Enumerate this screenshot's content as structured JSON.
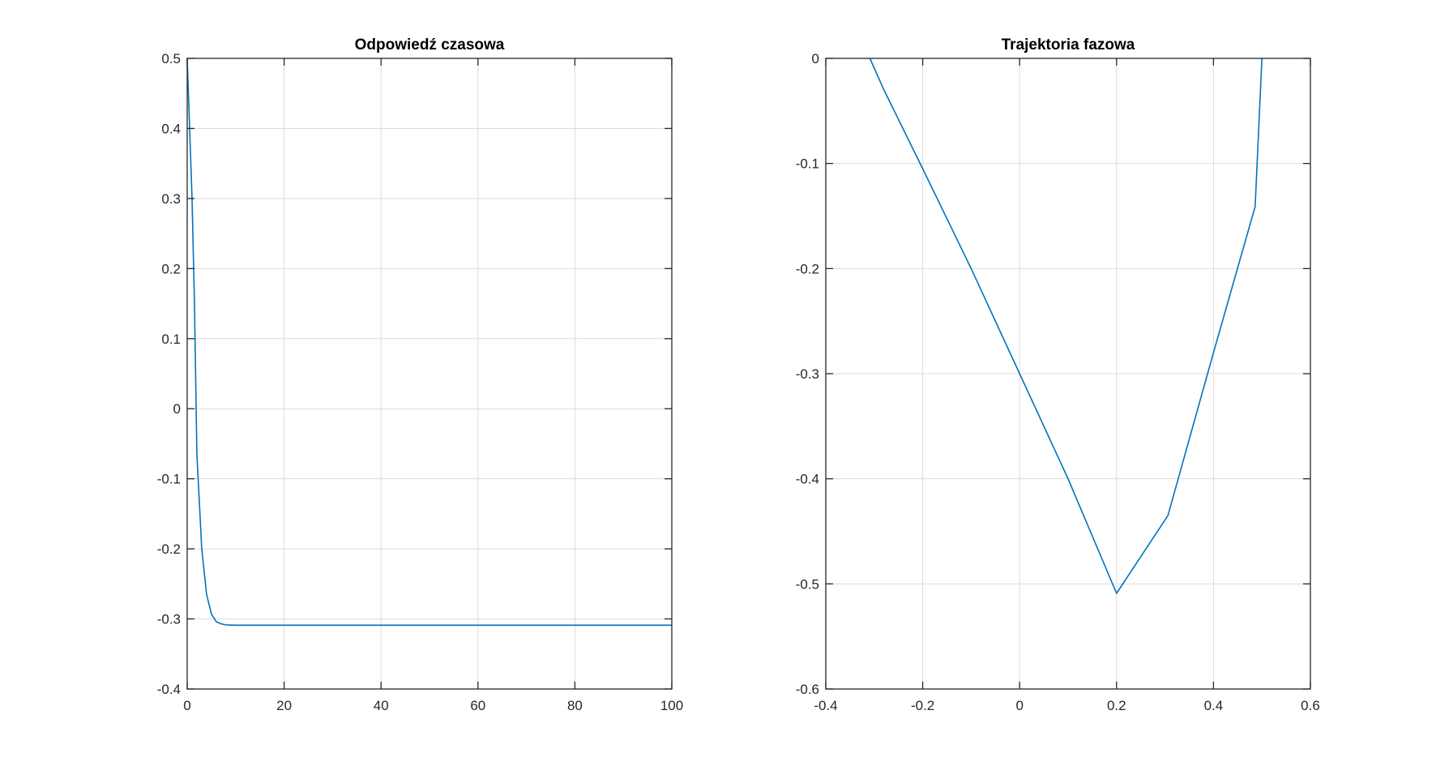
{
  "chart_data": [
    {
      "type": "line",
      "title": "Odpowiedź czasowa",
      "xlabel": "",
      "ylabel": "",
      "xlim": [
        0,
        100
      ],
      "ylim": [
        -0.4,
        0.5
      ],
      "xticks": [
        0,
        20,
        40,
        60,
        80,
        100
      ],
      "xtick_labels": [
        "0",
        "20",
        "40",
        "60",
        "80",
        "100"
      ],
      "yticks": [
        -0.4,
        -0.3,
        -0.2,
        -0.1,
        0,
        0.1,
        0.2,
        0.3,
        0.4,
        0.5
      ],
      "ytick_labels": [
        "-0.4",
        "-0.3",
        "-0.2",
        "-0.1",
        "0",
        "0.1",
        "0.2",
        "0.3",
        "0.4",
        "0.5"
      ],
      "grid": true,
      "color": "#0072bd",
      "series": [
        {
          "x": [
            0,
            0.5,
            1,
            1.5,
            2,
            3,
            4,
            5,
            6,
            7,
            8,
            10,
            12,
            15,
            20,
            40,
            60,
            80,
            100
          ],
          "y": [
            0.5,
            0.4,
            0.3,
            0.15,
            -0.065,
            -0.2,
            -0.265,
            -0.293,
            -0.304,
            -0.307,
            -0.3085,
            -0.309,
            -0.309,
            -0.309,
            -0.309,
            -0.309,
            -0.309,
            -0.309,
            -0.309
          ]
        }
      ]
    },
    {
      "type": "line",
      "title": "Trajektoria fazowa",
      "xlabel": "",
      "ylabel": "",
      "xlim": [
        -0.4,
        0.6
      ],
      "ylim": [
        -0.6,
        0
      ],
      "xticks": [
        -0.4,
        -0.2,
        0,
        0.2,
        0.4,
        0.6
      ],
      "xtick_labels": [
        "-0.4",
        "-0.2",
        "0",
        "0.2",
        "0.4",
        "0.6"
      ],
      "yticks": [
        -0.6,
        -0.5,
        -0.4,
        -0.3,
        -0.2,
        -0.1,
        0
      ],
      "ytick_labels": [
        "-0.6",
        "-0.5",
        "-0.4",
        "-0.3",
        "-0.2",
        "-0.1",
        "0"
      ],
      "grid": true,
      "color": "#0072bd",
      "series": [
        {
          "x": [
            -0.309,
            -0.28,
            -0.2,
            -0.1,
            0,
            0.1,
            0.2,
            0.306,
            0.4,
            0.486,
            0.497,
            0.5
          ],
          "y": [
            0,
            -0.03,
            -0.105,
            -0.2,
            -0.3,
            -0.4,
            -0.509,
            -0.435,
            -0.28,
            -0.141,
            -0.03,
            0
          ]
        }
      ]
    }
  ]
}
